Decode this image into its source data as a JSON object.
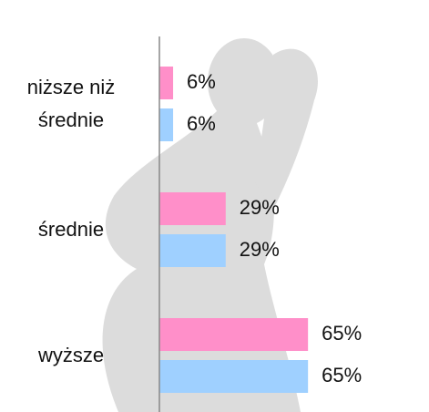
{
  "chart_data": {
    "type": "bar",
    "orientation": "horizontal",
    "categories": [
      "niższe niż średnie",
      "średnie",
      "wyższe"
    ],
    "xlim": [
      0,
      100
    ],
    "series": [
      {
        "color": "#ff8fc9",
        "values": [
          6,
          29,
          65
        ],
        "value_labels": [
          "6%",
          "29%",
          "65%"
        ]
      },
      {
        "color": "#9fd0ff",
        "values": [
          6,
          29,
          65
        ],
        "value_labels": [
          "6%",
          "29%",
          "65%"
        ]
      }
    ]
  }
}
